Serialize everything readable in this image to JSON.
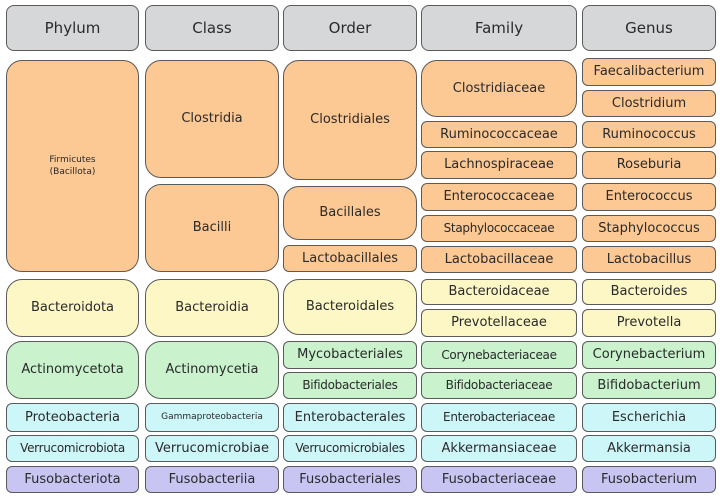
{
  "colors": {
    "header": "#d6d7d9",
    "firmicutes": "#fcc894",
    "bacteroidota": "#fdf7c6",
    "actinomycetota": "#c9f2cd",
    "proteo_verruco": "#cdf6f9",
    "fusobacteriota": "#c9c5f3"
  },
  "columns": [
    {
      "header": "Phylum",
      "items": [
        {
          "label": "Firmicutes\n(Bacillota)",
          "group": "firmicutes"
        },
        {
          "label": "Bacteroidota",
          "group": "bacteroidota"
        },
        {
          "label": "Actinomycetota",
          "group": "actinomycetota"
        },
        {
          "label": "Proteobacteria",
          "group": "proteo_verruco"
        },
        {
          "label": "Verrucomicrobiota",
          "group": "proteo_verruco"
        },
        {
          "label": "Fusobacteriota",
          "group": "fusobacteriota"
        }
      ]
    },
    {
      "header": "Class",
      "items": [
        {
          "label": "Clostridia",
          "group": "firmicutes"
        },
        {
          "label": "Bacilli",
          "group": "firmicutes"
        },
        {
          "label": "Bacteroidia",
          "group": "bacteroidota"
        },
        {
          "label": "Actinomycetia",
          "group": "actinomycetota"
        },
        {
          "label": "Gammaproteobacteria",
          "group": "proteo_verruco"
        },
        {
          "label": "Verrucomicrobiae",
          "group": "proteo_verruco"
        },
        {
          "label": "Fusobacteriia",
          "group": "fusobacteriota"
        }
      ]
    },
    {
      "header": "Order",
      "items": [
        {
          "label": "Clostridiales",
          "group": "firmicutes"
        },
        {
          "label": "Bacillales",
          "group": "firmicutes"
        },
        {
          "label": "Lactobacillales",
          "group": "firmicutes"
        },
        {
          "label": "Bacteroidales",
          "group": "bacteroidota"
        },
        {
          "label": "Mycobacteriales",
          "group": "actinomycetota"
        },
        {
          "label": "Bifidobacteriales",
          "group": "actinomycetota"
        },
        {
          "label": "Enterobacterales",
          "group": "proteo_verruco"
        },
        {
          "label": "Verrucomicrobiales",
          "group": "proteo_verruco"
        },
        {
          "label": "Fusobacteriales",
          "group": "fusobacteriota"
        }
      ]
    },
    {
      "header": "Family",
      "items": [
        {
          "label": "Clostridiaceae",
          "group": "firmicutes"
        },
        {
          "label": "Ruminococcaceae",
          "group": "firmicutes"
        },
        {
          "label": "Lachnospiraceae",
          "group": "firmicutes"
        },
        {
          "label": "Enterococcaceae",
          "group": "firmicutes"
        },
        {
          "label": "Staphylococcaceae",
          "group": "firmicutes"
        },
        {
          "label": "Lactobacillaceae",
          "group": "firmicutes"
        },
        {
          "label": "Bacteroidaceae",
          "group": "bacteroidota"
        },
        {
          "label": "Prevotellaceae",
          "group": "bacteroidota"
        },
        {
          "label": "Corynebacteriaceae",
          "group": "actinomycetota"
        },
        {
          "label": "Bifidobacteriaceae",
          "group": "actinomycetota"
        },
        {
          "label": "Enterobacteriaceae",
          "group": "proteo_verruco"
        },
        {
          "label": "Akkermansiaceae",
          "group": "proteo_verruco"
        },
        {
          "label": "Fusobacteriaceae",
          "group": "fusobacteriota"
        }
      ]
    },
    {
      "header": "Genus",
      "items": [
        {
          "label": "Faecalibacterium",
          "group": "firmicutes"
        },
        {
          "label": "Clostridium",
          "group": "firmicutes"
        },
        {
          "label": "Ruminococcus",
          "group": "firmicutes"
        },
        {
          "label": "Roseburia",
          "group": "firmicutes"
        },
        {
          "label": "Enterococcus",
          "group": "firmicutes"
        },
        {
          "label": "Staphylococcus",
          "group": "firmicutes"
        },
        {
          "label": "Lactobacillus",
          "group": "firmicutes"
        },
        {
          "label": "Bacteroides",
          "group": "bacteroidota"
        },
        {
          "label": "Prevotella",
          "group": "bacteroidota"
        },
        {
          "label": "Corynebacterium",
          "group": "actinomycetota"
        },
        {
          "label": "Bifidobacterium",
          "group": "actinomycetota"
        },
        {
          "label": "Escherichia",
          "group": "proteo_verruco"
        },
        {
          "label": "Akkermansia",
          "group": "proteo_verruco"
        },
        {
          "label": "Fusobacterium",
          "group": "fusobacteriota"
        }
      ]
    }
  ]
}
